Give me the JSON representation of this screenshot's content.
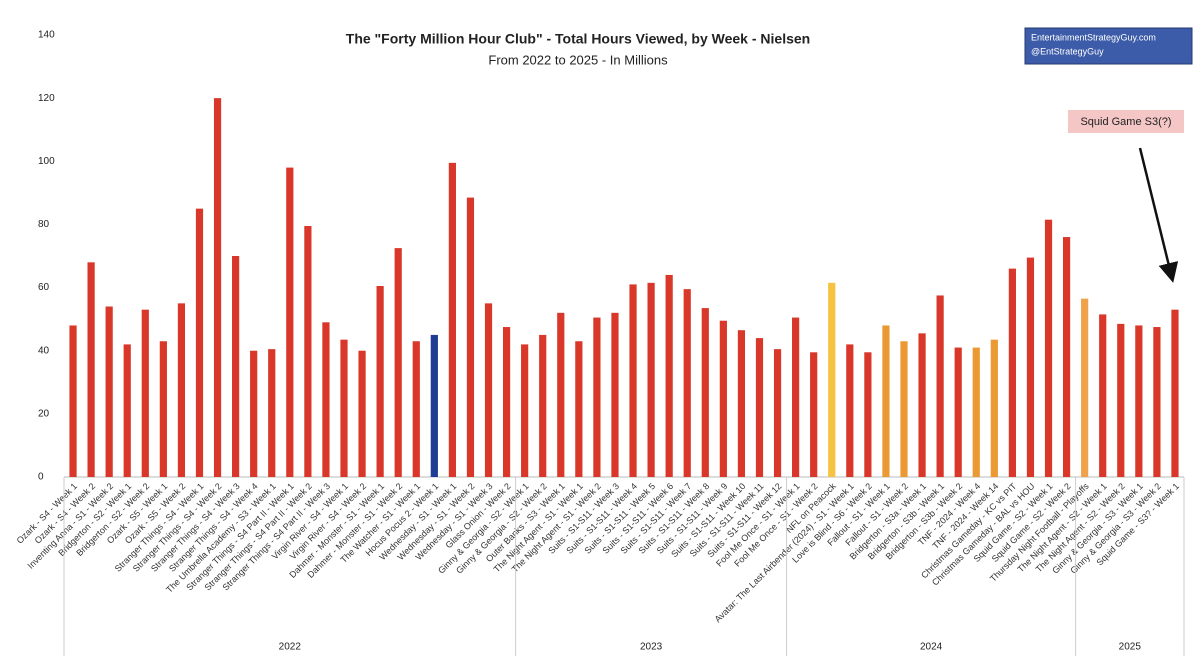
{
  "chart_data": {
    "type": "bar",
    "title": "The \"Forty Million Hour Club\" - Total Hours Viewed, by Week - Nielsen",
    "subtitle": "From 2022 to 2025 - In Millions",
    "source": [
      "EntertainmentStrategyGuy.com",
      "@EntStrategyGuy"
    ],
    "annotation": "Squid Game S3(?)",
    "categories": [
      "Ozark - S4 - Week 1",
      "Ozark - S4 - Week 2",
      "Inventing Anna - S1 - Week 2",
      "Bridgerton - S2 - Week 1",
      "Bridgerton - S2 - Week 2",
      "Ozark - S5 - Week 1",
      "Ozark - S5 - Week 2",
      "Stranger Things - S4 - Week 1",
      "Stranger Things - S4 - Week 2",
      "Stranger Things - S4 - Week 3",
      "Stranger Things - S4 - Week 4",
      "The Umbrella Academy - S3 - Week 1",
      "Stranger Things - S4 Part II - Week 1",
      "Stranger Things - S4 Part II - Week 2",
      "Stranger Things - S4 Part II - Week 3",
      "Virgin River - S4 - Week 1",
      "Virgin River - S4 - Week 2",
      "Dahmer - Monster - S1 - Week 1",
      "Dahmer - Monster - S1 - Week 2",
      "The Watcher - S1 - Week 1",
      "Hocus Pocus 2 - Week 1",
      "Wednesday - S1 - Week 1",
      "Wednesday - S1 - Week 2",
      "Wednesday - S1 - Week 3",
      "Glass Onion - Week 2",
      "Ginny & Georgia - S2 - Week 1",
      "Ginny & Georgia - S2 - Week 2",
      "Outer Banks - S3 - Week 1",
      "The Night Agent - S1 - Week 1",
      "The Night Agent - S1 - Week 2",
      "Suits - S1-S11 - Week 3",
      "Suits - S1-S11 - Week 4",
      "Suits - S1-S11 - Week 5",
      "Suits - S1-S11 - Week 6",
      "Suits - S1-S11 - Week 7",
      "Suits - S1-S11 - Week 8",
      "Suits - S1-S11 - Week 9",
      "Suits - S1-S11 - Week 10",
      "Suits - S1-S11 - Week 11",
      "Suits - S1-S11 - Week 12",
      "Fool Me Once - S1 - Week 1",
      "Fool Me Once - S1 - Week 2",
      "NFL on Peacock",
      "Avatar: The Last Airbender (2024) - S1 - Week 1",
      "Love is Blind - S6 - Week 2",
      "Fallout - S1 - Week 1",
      "Fallout - S1 - Week 2",
      "Bridgerton - S3a - Week 1",
      "Bridgerton - S3b - Week 1",
      "Bridgerton - S3b - Week 2",
      "TNF - 2024 - Week 4",
      "TNF - 2024 - Week 14",
      "Christmas Gameday - KC vs PIT",
      "Christmas Gameday - BAL vs HOU",
      "Squid Game - S2 - Week 1",
      "Squid Game - S2 - Week 2",
      "Thursday Night Football - Playoffs",
      "The Night Agent - S2 - Week 1",
      "The Night Agent - S2 - Week 2",
      "Ginny & Georgia - S3 - Week 1",
      "Ginny & Georgia - S3 - Week 2",
      "Squid Game - S3? - Week 1"
    ],
    "values": [
      48,
      68,
      54,
      42,
      53,
      43,
      55,
      85,
      120,
      70,
      40,
      40.5,
      98,
      79.5,
      49,
      43.5,
      40,
      60.5,
      72.5,
      43,
      45,
      99.5,
      88.5,
      55,
      47.5,
      42,
      45,
      52,
      43,
      50.5,
      52,
      61,
      61.5,
      64,
      59.5,
      53.5,
      49.5,
      46.5,
      44,
      40.5,
      50.5,
      39.5,
      61.5,
      42,
      39.5,
      48,
      43,
      45.5,
      57.5,
      41,
      41,
      43.5,
      66,
      69.5,
      81.5,
      76,
      56.5,
      51.5,
      48.5,
      48,
      47.5,
      53
    ],
    "colors": [
      "#d9372a",
      "#d9372a",
      "#d9372a",
      "#d9372a",
      "#d9372a",
      "#d9372a",
      "#d9372a",
      "#d9372a",
      "#d9372a",
      "#d9372a",
      "#d9372a",
      "#d9372a",
      "#d9372a",
      "#d9372a",
      "#d9372a",
      "#d9372a",
      "#d9372a",
      "#d9372a",
      "#d9372a",
      "#d9372a",
      "#1f3b94",
      "#d9372a",
      "#d9372a",
      "#d9372a",
      "#d9372a",
      "#d9372a",
      "#d9372a",
      "#d9372a",
      "#d9372a",
      "#d9372a",
      "#d9372a",
      "#d9372a",
      "#d9372a",
      "#d9372a",
      "#d9372a",
      "#d9372a",
      "#d9372a",
      "#d9372a",
      "#d9372a",
      "#d9372a",
      "#d9372a",
      "#d9372a",
      "#f5c242",
      "#d9372a",
      "#d9372a",
      "#eb9a33",
      "#eb9a33",
      "#d9372a",
      "#d9372a",
      "#d9372a",
      "#eb9a33",
      "#eb9a33",
      "#d9372a",
      "#d9372a",
      "#d9372a",
      "#d9372a",
      "#efa24b",
      "#d9372a",
      "#d9372a",
      "#d9372a",
      "#d9372a",
      "#d9372a"
    ],
    "groups": [
      {
        "label": "2022",
        "size": 25
      },
      {
        "label": "2023",
        "size": 15
      },
      {
        "label": "2024",
        "size": 16
      },
      {
        "label": "2025",
        "size": 6
      }
    ],
    "ylim": [
      0,
      140
    ],
    "yticks": [
      0,
      20,
      40,
      60,
      80,
      100,
      120,
      140
    ]
  }
}
